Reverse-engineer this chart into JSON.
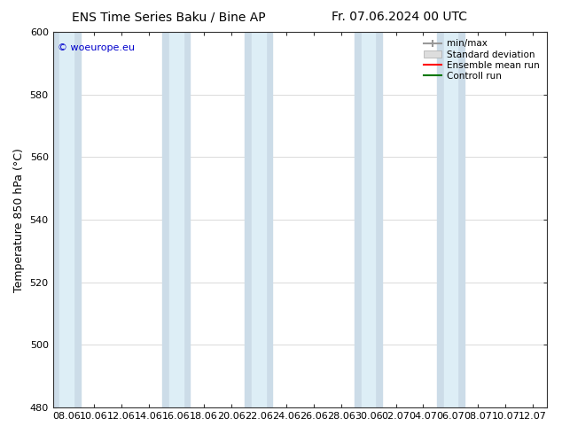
{
  "title_left": "ENS Time Series Baku / Bine AP",
  "title_right": "Fr. 07.06.2024 00 UTC",
  "ylabel": "Temperature 850 hPa (°C)",
  "watermark": "© woeurope.eu",
  "ylim": [
    480,
    600
  ],
  "yticks": [
    480,
    500,
    520,
    540,
    560,
    580,
    600
  ],
  "xtick_labels": [
    "08.06",
    "10.06",
    "12.06",
    "14.06",
    "16.06",
    "18.06",
    "20.06",
    "22.06",
    "24.06",
    "26.06",
    "28.06",
    "30.06",
    "02.07",
    "04.07",
    "06.07",
    "08.07",
    "10.07",
    "12.07"
  ],
  "bg_color": "#ffffff",
  "plot_bg_color": "#ffffff",
  "band_color_outer": "#ccdce8",
  "band_color_inner": "#ddeef6",
  "ensemble_mean_color": "#ff0000",
  "control_run_color": "#007700",
  "legend_labels": [
    "min/max",
    "Standard deviation",
    "Ensemble mean run",
    "Controll run"
  ],
  "title_fontsize": 10,
  "axis_label_fontsize": 9,
  "tick_fontsize": 8,
  "watermark_color": "#0000cc",
  "grid_color": "#cccccc",
  "bands": [
    {
      "outer": [
        0,
        1
      ],
      "inner": [
        0.25,
        0.75
      ]
    },
    {
      "outer": [
        4,
        5
      ],
      "inner": [
        4.25,
        4.75
      ]
    },
    {
      "outer": [
        7,
        8
      ],
      "inner": [
        7.25,
        7.75
      ]
    },
    {
      "outer": [
        11,
        12
      ],
      "inner": [
        11.25,
        11.75
      ]
    },
    {
      "outer": [
        14,
        15
      ],
      "inner": [
        14.25,
        14.75
      ]
    }
  ]
}
